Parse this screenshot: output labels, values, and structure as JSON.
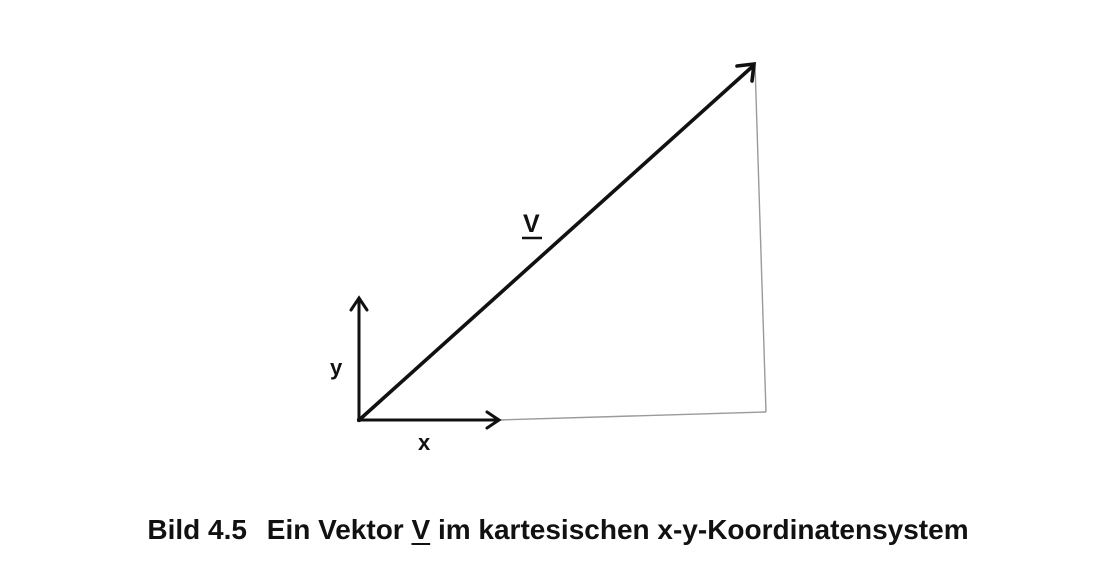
{
  "diagram": {
    "vector_label": "V",
    "x_axis_label": "x",
    "y_axis_label": "y"
  },
  "caption": {
    "number": "Bild 4.5",
    "text_before": "Ein Vektor",
    "vector_symbol": "V",
    "text_after": "im kartesischen x-y-Koordinatensystem"
  },
  "colors": {
    "ink": "#111111",
    "helper_line": "#9a9a9a",
    "background": "#ffffff"
  }
}
